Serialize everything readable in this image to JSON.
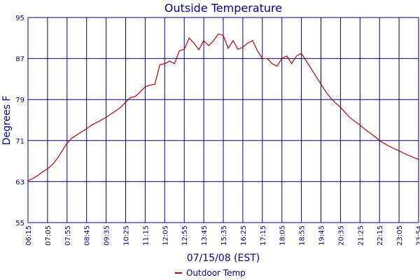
{
  "chart_data": {
    "type": "line",
    "title": "Outside Temperature",
    "x_label": "07/15/08 (EST)",
    "y_label": "Degrees F",
    "categories": [
      "06:15",
      null,
      null,
      null,
      "07:05",
      null,
      null,
      null,
      "07:55",
      null,
      null,
      null,
      "08:45",
      null,
      null,
      null,
      "09:35",
      null,
      null,
      null,
      "10:25",
      null,
      null,
      null,
      "11:15",
      null,
      null,
      null,
      "12:05",
      null,
      null,
      null,
      "12:55",
      null,
      null,
      null,
      "13:45",
      null,
      null,
      null,
      "15:35",
      null,
      null,
      null,
      "16:25",
      null,
      null,
      null,
      "17:15",
      null,
      null,
      null,
      "18:05",
      null,
      null,
      null,
      "18:55",
      null,
      null,
      null,
      "19:45",
      null,
      null,
      null,
      "20:35",
      null,
      null,
      null,
      "21:25",
      null,
      null,
      null,
      "22:15",
      null,
      null,
      null,
      "23:05",
      null,
      null,
      null,
      "23:54"
    ],
    "series": [
      {
        "name": "Outdoor Temp",
        "color": "#b00000",
        "values": [
          63.2,
          63.6,
          64.2,
          64.9,
          65.5,
          66.3,
          67.5,
          69.0,
          70.5,
          71.5,
          72.1,
          72.7,
          73.3,
          74.0,
          74.5,
          75.0,
          75.5,
          76.2,
          76.8,
          77.5,
          78.5,
          79.4,
          79.6,
          80.5,
          81.5,
          81.8,
          82.0,
          85.8,
          86.0,
          86.5,
          86.0,
          88.5,
          88.8,
          91.0,
          90.0,
          88.7,
          90.5,
          89.5,
          90.5,
          91.8,
          91.5,
          89.0,
          90.5,
          88.8,
          89.2,
          90.0,
          90.5,
          88.5,
          87.0,
          87.0,
          86.0,
          85.5,
          87.0,
          87.5,
          86.0,
          87.5,
          88.0,
          86.5,
          85.0,
          83.5,
          82.0,
          80.5,
          79.3,
          78.3,
          77.5,
          76.4,
          75.4,
          74.7,
          74.0,
          73.2,
          72.5,
          71.8,
          71.0,
          70.4,
          69.9,
          69.4,
          69.0,
          68.5,
          68.1,
          67.7,
          67.3
        ]
      }
    ],
    "ylim": [
      55,
      95
    ],
    "yticks": [
      55,
      63,
      71,
      79,
      87,
      95
    ],
    "grid": true,
    "legend": "bottom"
  }
}
